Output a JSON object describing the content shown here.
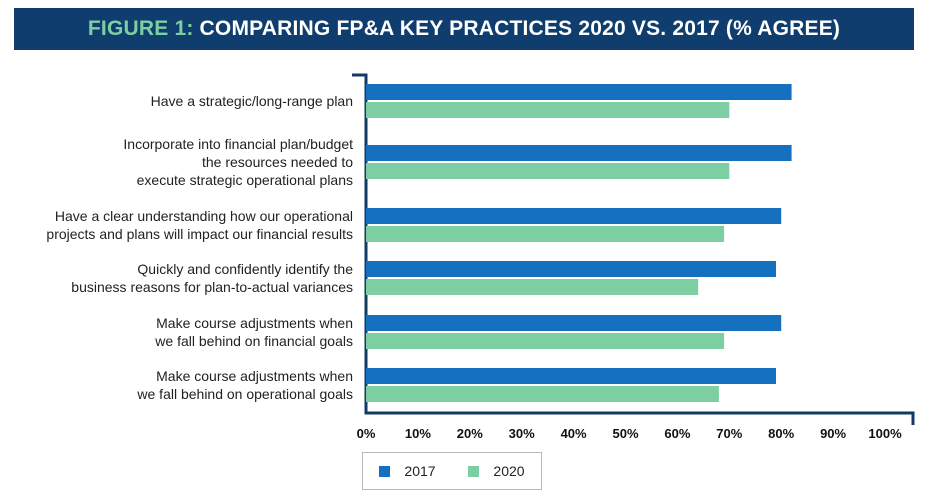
{
  "header": {
    "prefix": "FIGURE 1:",
    "title": "COMPARING FP&A KEY PRACTICES 2020 VS. 2017 (% AGREE)"
  },
  "colors": {
    "banner": "#0f3d6e",
    "accent": "#7dcfa3",
    "series_2017": "#1670c0",
    "series_2020": "#7dcfa3",
    "axis": "#123a63"
  },
  "chart_data": {
    "type": "bar",
    "orientation": "horizontal",
    "title": "COMPARING FP&A KEY PRACTICES 2020 VS. 2017 (% AGREE)",
    "categories": [
      [
        "Have a strategic/long-range plan"
      ],
      [
        "Incorporate into financial plan/budget",
        "the resources needed to",
        "execute strategic operational plans"
      ],
      [
        "Have a clear understanding how our operational",
        "projects and plans will impact our financial results"
      ],
      [
        "Quickly and confidently identify the",
        "business reasons for plan-to-actual variances"
      ],
      [
        "Make course adjustments when",
        "we fall behind on financial goals"
      ],
      [
        "Make course adjustments when",
        "we fall behind on operational goals"
      ]
    ],
    "series": [
      {
        "name": "2017",
        "values": [
          82,
          82,
          80,
          79,
          80,
          79
        ]
      },
      {
        "name": "2020",
        "values": [
          70,
          70,
          69,
          64,
          69,
          68
        ]
      }
    ],
    "xlim": [
      0,
      100
    ],
    "xticks": [
      "0%",
      "10%",
      "20%",
      "30%",
      "40%",
      "50%",
      "60%",
      "70%",
      "80%",
      "90%",
      "100%"
    ],
    "xlabel": "",
    "ylabel": "",
    "legend": [
      "2017",
      "2020"
    ],
    "legend_position": "bottom"
  }
}
